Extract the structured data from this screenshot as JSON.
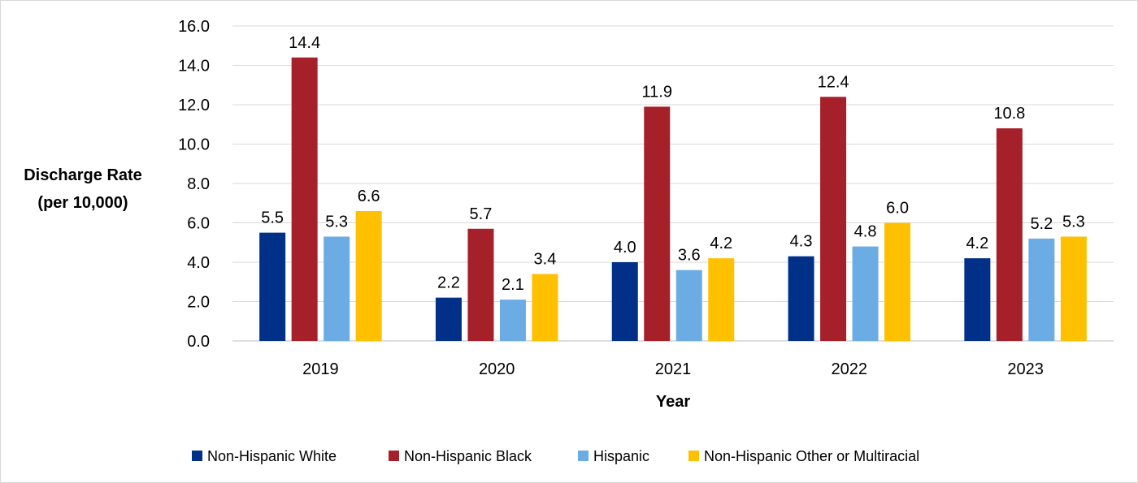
{
  "chart_data": {
    "type": "bar",
    "categories": [
      "2019",
      "2020",
      "2021",
      "2022",
      "2023"
    ],
    "series": [
      {
        "name": "Non-Hispanic White",
        "values": [
          5.5,
          2.2,
          4.0,
          4.3,
          4.2
        ],
        "color": "#003087",
        "labels": [
          "5.5",
          "2.2",
          "4.0",
          "4.3",
          "4.2"
        ]
      },
      {
        "name": "Non-Hispanic Black",
        "values": [
          14.4,
          5.7,
          11.9,
          12.4,
          10.8
        ],
        "color": "#A6202A",
        "labels": [
          "14.4",
          "5.7",
          "11.9",
          "12.4",
          "10.8"
        ]
      },
      {
        "name": "Hispanic",
        "values": [
          5.3,
          2.1,
          3.6,
          4.8,
          5.2
        ],
        "color": "#6CACE4",
        "labels": [
          "5.3",
          "2.1",
          "3.6",
          "4.8",
          "5.2"
        ]
      },
      {
        "name": "Non-Hispanic Other or Multiracial",
        "values": [
          6.6,
          3.4,
          4.2,
          6.0,
          5.3
        ],
        "color": "#FFC000",
        "labels": [
          "6.6",
          "3.4",
          "4.2",
          "6.0",
          "5.3"
        ]
      }
    ],
    "xlabel": "Year",
    "ylabel": [
      "Discharge Rate",
      "(per 10,000)"
    ],
    "ylim": [
      0,
      16
    ],
    "yticks": [
      "0.0",
      "2.0",
      "4.0",
      "6.0",
      "8.0",
      "10.0",
      "12.0",
      "14.0",
      "16.0"
    ],
    "grid": true,
    "legend_position": "bottom"
  }
}
